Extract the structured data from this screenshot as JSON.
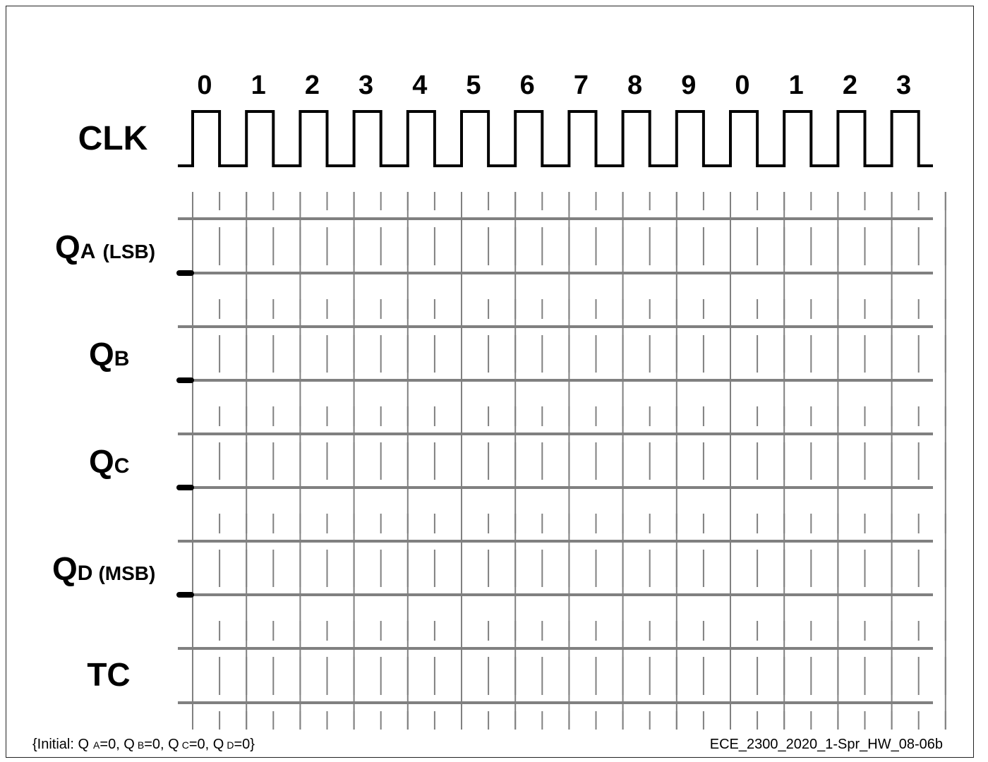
{
  "diagram": {
    "count_labels": [
      "0",
      "1",
      "2",
      "3",
      "4",
      "5",
      "6",
      "7",
      "8",
      "9",
      "0",
      "1",
      "2",
      "3"
    ],
    "clock_label": "CLK",
    "signals": [
      {
        "main": "Q",
        "sub": "A",
        "suffix": "(LSB)"
      },
      {
        "main": "Q",
        "sub": "B",
        "suffix": ""
      },
      {
        "main": "Q",
        "sub": "C",
        "suffix": ""
      },
      {
        "main": "Q",
        "sub": "D",
        "suffix": "(MSB)"
      },
      {
        "main": "TC",
        "sub": "",
        "suffix": ""
      }
    ],
    "initial_values": {
      "parts": [
        {
          "main": "{Initial: Q",
          "sub": "A",
          "tail": "=0,"
        },
        {
          "main": " Q",
          "sub": "B",
          "tail": "=0,"
        },
        {
          "main": " Q",
          "sub": "C",
          "tail": "=0,"
        },
        {
          "main": " Q",
          "sub": "D",
          "tail": "=0}"
        }
      ]
    },
    "document_id": "ECE_2300_2020_1-Spr_HW_08-06b",
    "colors": {
      "waveform": "#000000",
      "grid": "#808080"
    }
  }
}
